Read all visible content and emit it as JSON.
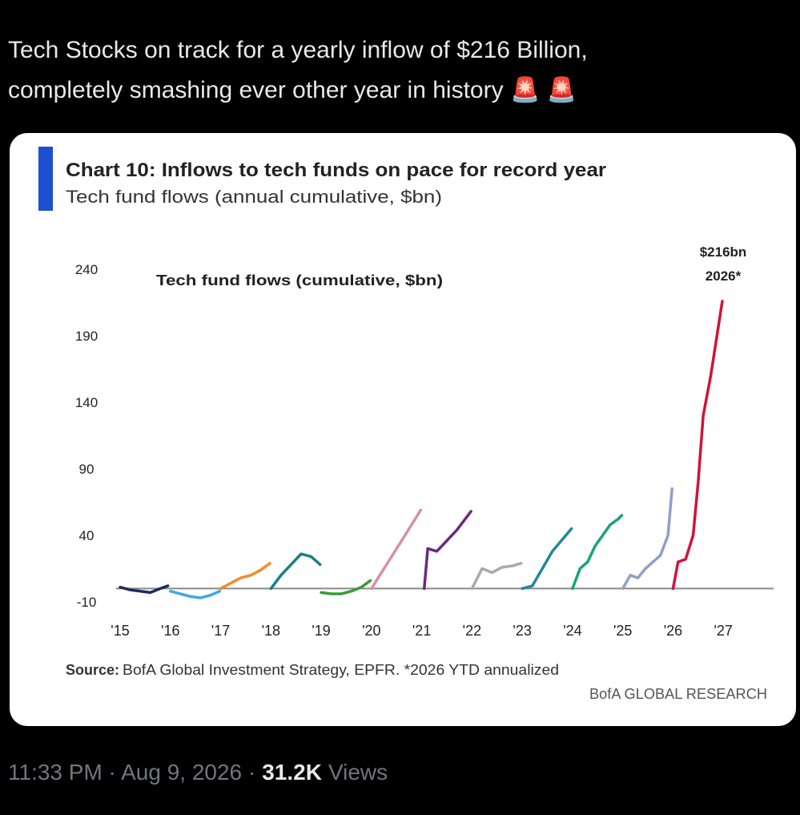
{
  "post": {
    "text_line1": "Tech Stocks on track for a yearly inflow of $216 Billion,",
    "text_line2": "completely smashing ever other year in history 🚨 🚨",
    "time": "11:33 PM · Aug 9, 2026 ·",
    "views_count": "31.2K",
    "views_label": "Views"
  },
  "chart_data": {
    "type": "line",
    "title": "Chart 10: Inflows to tech funds on pace for record year",
    "subtitle": "Tech fund flows (annual cumulative, $bn)",
    "inner_label": "Tech fund flows (cumulative, $bn)",
    "annotation_value": "$216bn",
    "annotation_year": "2026*",
    "source_label": "Source:",
    "source": "BofA Global Investment Strategy, EPFR. *2026 YTD annualized",
    "brand": "BofA GLOBAL RESEARCH",
    "xlim": [
      2015,
      2028
    ],
    "xticks": [
      {
        "value": 2015,
        "label": "'15"
      },
      {
        "value": 2016,
        "label": "'16"
      },
      {
        "value": 2017,
        "label": "'17"
      },
      {
        "value": 2018,
        "label": "'18"
      },
      {
        "value": 2019,
        "label": "'19"
      },
      {
        "value": 2020,
        "label": "'20"
      },
      {
        "value": 2021,
        "label": "'21"
      },
      {
        "value": 2022,
        "label": "'22"
      },
      {
        "value": 2023,
        "label": "'23"
      },
      {
        "value": 2024,
        "label": "'24"
      },
      {
        "value": 2025,
        "label": "'25"
      },
      {
        "value": 2026,
        "label": "'26"
      },
      {
        "value": 2027,
        "label": "'27"
      }
    ],
    "ylim": [
      -10,
      240
    ],
    "yticks": [
      -10,
      40,
      90,
      140,
      190,
      240
    ],
    "series": [
      {
        "color": "#1f2a5c",
        "x": [
          2015.0,
          2015.2,
          2015.4,
          2015.6,
          2015.8,
          2015.95
        ],
        "values": [
          1,
          -1,
          -2,
          -3,
          0,
          2
        ]
      },
      {
        "color": "#3fa9e0",
        "x": [
          2016.0,
          2016.2,
          2016.4,
          2016.6,
          2016.8,
          2016.98
        ],
        "values": [
          -2,
          -4,
          -6,
          -7,
          -5,
          -2
        ]
      },
      {
        "color": "#f28c28",
        "x": [
          2017.0,
          2017.2,
          2017.4,
          2017.6,
          2017.8,
          2017.98
        ],
        "values": [
          0,
          4,
          8,
          10,
          14,
          19
        ]
      },
      {
        "color": "#1a7f8a",
        "x": [
          2018.0,
          2018.2,
          2018.4,
          2018.6,
          2018.8,
          2018.98
        ],
        "values": [
          0,
          10,
          18,
          26,
          24,
          18
        ]
      },
      {
        "color": "#3a9a3a",
        "x": [
          2019.0,
          2019.2,
          2019.4,
          2019.6,
          2019.8,
          2019.98
        ],
        "values": [
          -3,
          -4,
          -4,
          -2,
          1,
          6
        ]
      },
      {
        "color": "#d98fa8",
        "x": [
          2020.0,
          2020.2,
          2020.4,
          2020.6,
          2020.8,
          2020.98
        ],
        "values": [
          0,
          12,
          24,
          36,
          48,
          59
        ]
      },
      {
        "color": "#6b2a7a",
        "x": [
          2021.05,
          2021.12,
          2021.3,
          2021.5,
          2021.7,
          2021.98
        ],
        "values": [
          0,
          30,
          28,
          36,
          44,
          58
        ]
      },
      {
        "color": "#aaaaaa",
        "x": [
          2022.0,
          2022.2,
          2022.4,
          2022.6,
          2022.8,
          2022.98
        ],
        "values": [
          0,
          15,
          12,
          16,
          17,
          19
        ]
      },
      {
        "color": "#1f8a9a",
        "x": [
          2023.0,
          2023.2,
          2023.4,
          2023.6,
          2023.8,
          2023.98
        ],
        "values": [
          0,
          2,
          15,
          28,
          37,
          45
        ]
      },
      {
        "color": "#1aa37a",
        "x": [
          2024.0,
          2024.15,
          2024.3,
          2024.45,
          2024.6,
          2024.75,
          2024.9,
          2024.98
        ],
        "values": [
          0,
          15,
          20,
          32,
          40,
          48,
          52,
          55
        ]
      },
      {
        "color": "#8fa0c8",
        "x": [
          2025.0,
          2025.15,
          2025.3,
          2025.45,
          2025.6,
          2025.75,
          2025.9,
          2025.98
        ],
        "values": [
          0,
          10,
          8,
          15,
          20,
          25,
          40,
          75
        ]
      },
      {
        "color": "#d0143a",
        "x": [
          2026.0,
          2026.1,
          2026.25,
          2026.4,
          2026.5,
          2026.6,
          2026.75,
          2026.98
        ],
        "values": [
          0,
          20,
          22,
          40,
          80,
          130,
          160,
          216
        ]
      }
    ]
  }
}
